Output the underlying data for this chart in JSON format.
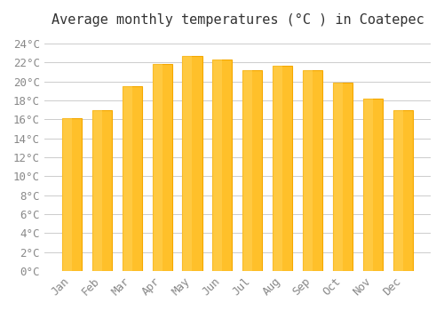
{
  "title": "Average monthly temperatures (°C ) in Coatepec",
  "months": [
    "Jan",
    "Feb",
    "Mar",
    "Apr",
    "May",
    "Jun",
    "Jul",
    "Aug",
    "Sep",
    "Oct",
    "Nov",
    "Dec"
  ],
  "values": [
    16.1,
    17.0,
    19.5,
    21.8,
    22.7,
    22.3,
    21.2,
    21.6,
    21.2,
    19.9,
    18.2,
    17.0
  ],
  "bar_color_face": "#FFC02A",
  "bar_color_edge": "#F5A800",
  "background_color": "#FFFFFF",
  "grid_color": "#CCCCCC",
  "ylim": [
    0,
    25
  ],
  "ytick_step": 2,
  "title_fontsize": 11,
  "tick_fontsize": 9,
  "tick_color": "#888888",
  "font_family": "monospace"
}
